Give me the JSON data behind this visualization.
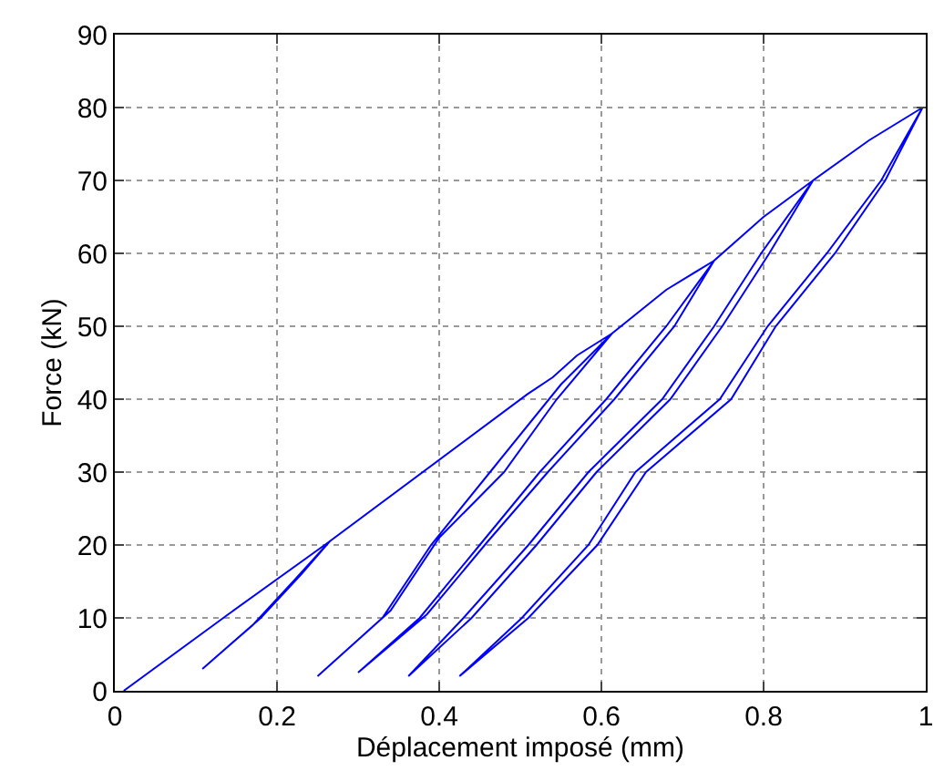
{
  "chart_data": {
    "type": "line",
    "xlabel": "Déplacement imposé (mm)",
    "ylabel": "Force (kN)",
    "series": [
      {
        "color": "#0000ff",
        "x": [
          0.011,
          0.14,
          0.265,
          0.22,
          0.17,
          0.108,
          0.18,
          0.23,
          0.265,
          0.509,
          0.54,
          0.57,
          0.613,
          0.55,
          0.47,
          0.39,
          0.33,
          0.25,
          0.34,
          0.4,
          0.48,
          0.545,
          0.613,
          0.68,
          0.739,
          0.68,
          0.606,
          0.524,
          0.45,
          0.376,
          0.3,
          0.385,
          0.46,
          0.534,
          0.616,
          0.69,
          0.739,
          0.8,
          0.861,
          0.797,
          0.739,
          0.675,
          0.584,
          0.51,
          0.43,
          0.362,
          0.44,
          0.52,
          0.594,
          0.685,
          0.749,
          0.807,
          0.861,
          0.93,
          0.996,
          0.945,
          0.878,
          0.805,
          0.746,
          0.642,
          0.584,
          0.502,
          0.425,
          0.51,
          0.595,
          0.655,
          0.76,
          0.815,
          0.888,
          0.95,
          0.996
        ],
        "values": [
          0,
          10.5,
          20.5,
          15,
          9,
          3,
          10,
          16,
          20.5,
          40.7,
          43,
          46,
          49,
          42,
          31,
          20,
          10,
          2,
          11,
          21,
          30,
          40,
          49,
          55,
          59,
          50,
          40,
          30,
          20,
          10,
          2.5,
          10.5,
          20.5,
          30,
          40,
          50,
          59,
          65,
          70,
          60,
          50,
          40,
          30,
          20,
          10,
          2,
          10,
          20,
          30,
          40,
          50,
          60,
          70,
          75.5,
          80,
          70,
          60,
          50,
          40,
          30,
          20,
          10,
          2,
          10,
          20,
          30,
          40,
          50,
          60,
          70,
          80
        ]
      }
    ],
    "xlim": [
      0,
      1
    ],
    "xticks": [
      0,
      0.2,
      0.4,
      0.6,
      0.8,
      1
    ],
    "ylim": [
      0,
      90
    ],
    "yticks": [
      0,
      10,
      20,
      30,
      40,
      50,
      60,
      70,
      80,
      90
    ],
    "grid": true,
    "marker": "none",
    "line_style": "solid"
  }
}
